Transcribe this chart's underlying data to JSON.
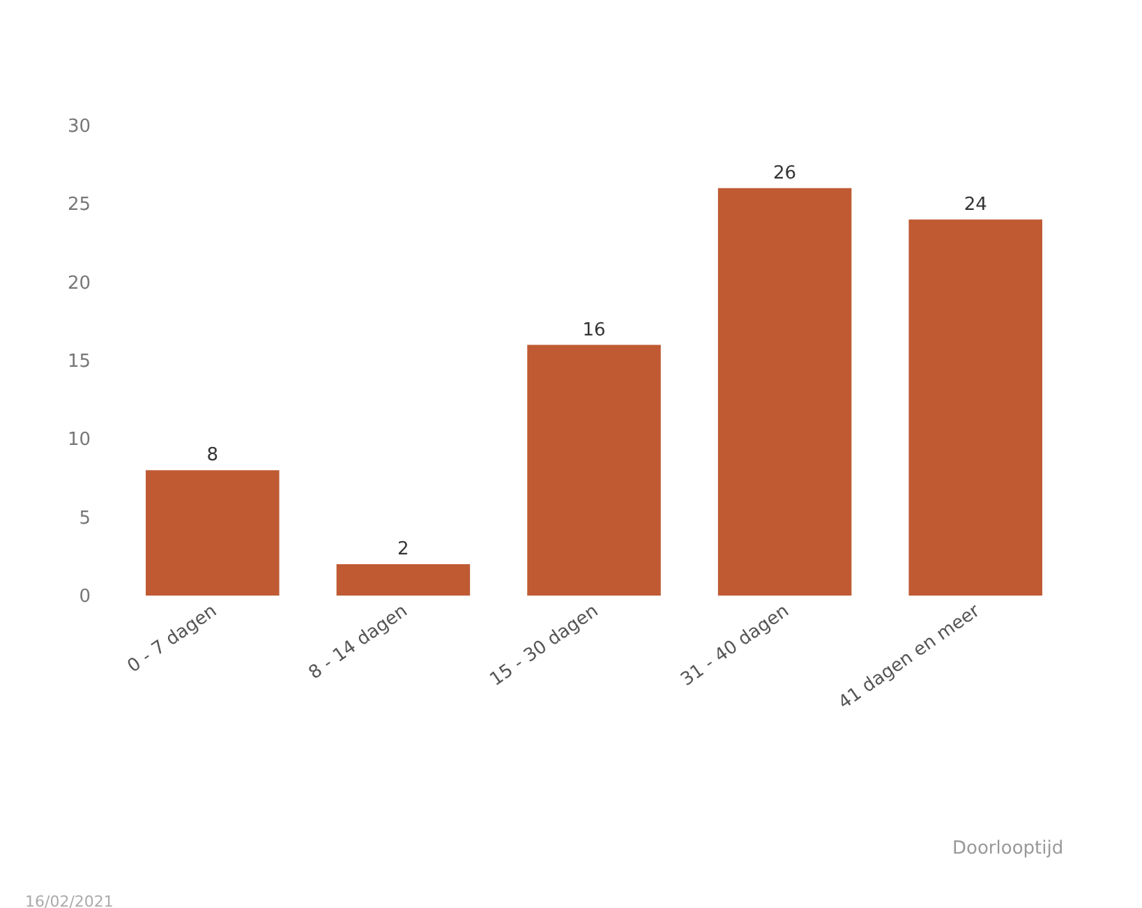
{
  "chart_data": {
    "type": "bar",
    "categories": [
      "0 - 7 dagen",
      "8 - 14 dagen",
      "15 - 30 dagen",
      "31 - 40 dagen",
      "41 dagen en meer"
    ],
    "values": [
      8,
      2,
      16,
      26,
      24
    ],
    "color": "#bf5a33",
    "ylim": [
      0,
      30
    ],
    "yticks": [
      0,
      5,
      10,
      15,
      20,
      25,
      30
    ],
    "annotations": [
      "Doorlooptijd",
      "16/02/2021"
    ],
    "data_labels": true
  }
}
